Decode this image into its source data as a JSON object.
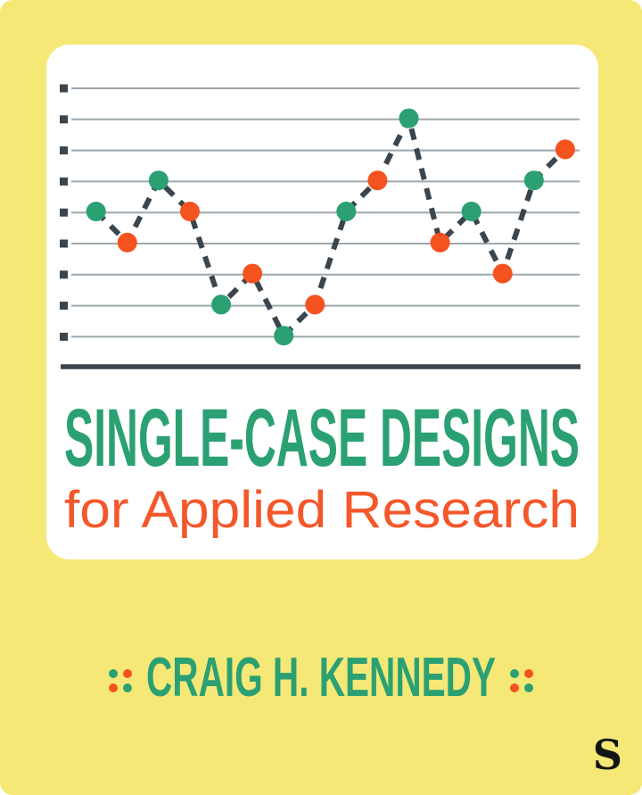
{
  "cover": {
    "background_color": "#F5E876",
    "card_color": "#FFFFFF"
  },
  "title": {
    "line1": "SINGLE-CASE DESIGNS",
    "line1_color": "#2BA173",
    "line2": "for Applied Research",
    "line2_color": "#F4572A"
  },
  "author": {
    "name": "CRAIG H. KENNEDY",
    "color": "#2BA173",
    "ornament_dot_colors": [
      "#2BA173",
      "#F4521F",
      "#F4521F",
      "#2BA173"
    ]
  },
  "publisher": {
    "logo_letter": "S",
    "logo_color": "#141414"
  },
  "chart_data": {
    "type": "line",
    "title": "",
    "xlabel": "",
    "ylabel": "",
    "x": [
      1,
      2,
      3,
      4,
      5,
      6,
      7,
      8,
      9,
      10,
      11,
      12,
      13,
      14,
      15,
      16
    ],
    "values": [
      5,
      4,
      6,
      5,
      2,
      3,
      1,
      2,
      5,
      6,
      8,
      4,
      5,
      3,
      6,
      7
    ],
    "marker_colors": [
      "#2BA173",
      "#F4521F",
      "#2BA173",
      "#F4521F",
      "#2BA173",
      "#F4521F",
      "#2BA173",
      "#F4521F",
      "#2BA173",
      "#F4521F",
      "#2BA173",
      "#F4521F",
      "#2BA173",
      "#F4521F",
      "#2BA173",
      "#F4521F"
    ],
    "line_style": "dashed",
    "line_color": "#3A454E",
    "grid": true,
    "gridline_count": 9,
    "gridline_color": "#9EA7AD",
    "tick_color": "#3A454E",
    "axis_color": "#3A454E",
    "ylim": [
      0,
      9
    ],
    "legend": false
  }
}
